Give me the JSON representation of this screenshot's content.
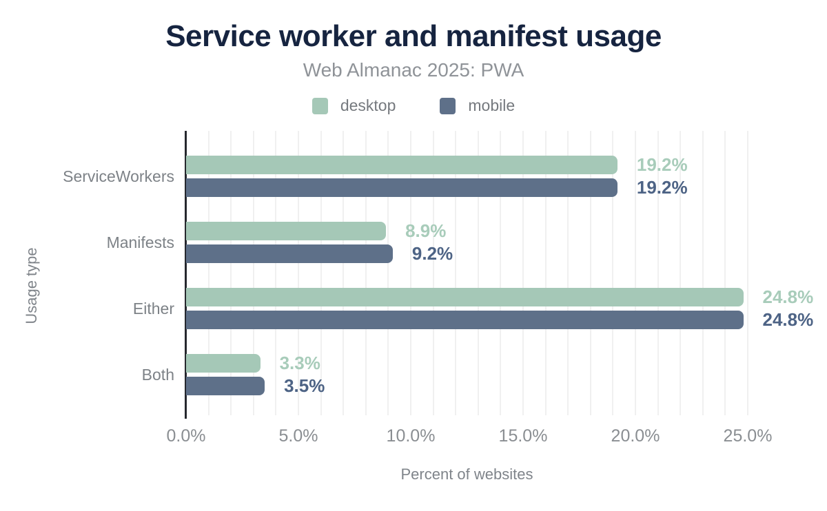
{
  "header": {
    "title": "Service worker and manifest usage",
    "subtitle": "Web Almanac 2025: PWA"
  },
  "chart_data": {
    "type": "bar",
    "orientation": "horizontal",
    "title": "Service worker and manifest usage",
    "subtitle": "Web Almanac 2025: PWA",
    "xlabel": "Percent of websites",
    "ylabel": "Usage type",
    "categories": [
      "ServiceWorkers",
      "Manifests",
      "Either",
      "Both"
    ],
    "series": [
      {
        "name": "desktop",
        "color": "#a5c8b7",
        "label_color": "#a8ccba",
        "values": [
          19.2,
          8.9,
          24.8,
          3.3
        ],
        "display_values": [
          "19.2%",
          "8.9%",
          "24.8%",
          "3.3%"
        ]
      },
      {
        "name": "mobile",
        "color": "#5e7089",
        "label_color": "#4d6385",
        "values": [
          19.2,
          9.2,
          24.8,
          3.5
        ],
        "display_values": [
          "19.2%",
          "9.2%",
          "24.8%",
          "3.5%"
        ]
      }
    ],
    "xlim": [
      0,
      25
    ],
    "x_ticks": [
      "0.0%",
      "5.0%",
      "10.0%",
      "15.0%",
      "20.0%",
      "25.0%"
    ],
    "x_tick_step": 5,
    "minor_grid_step": 1,
    "grid": true,
    "legend_position": "top"
  }
}
